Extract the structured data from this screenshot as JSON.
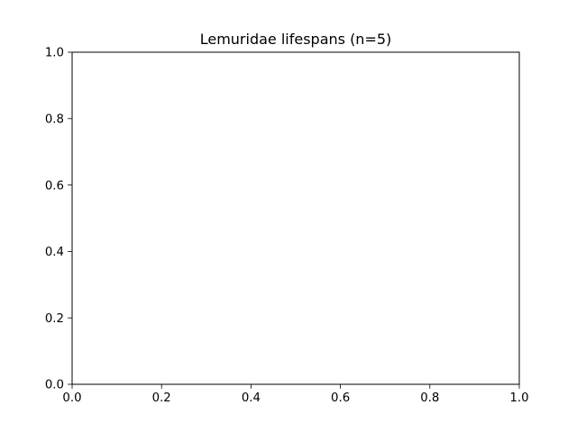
{
  "chart_data": {
    "type": "scatter",
    "title": "Lemuridae lifespans (n=5)",
    "xlabel": "",
    "ylabel": "",
    "xlim": [
      0.0,
      1.0
    ],
    "ylim": [
      0.0,
      1.0
    ],
    "x_ticks": [
      "0.0",
      "0.2",
      "0.4",
      "0.6",
      "0.8",
      "1.0"
    ],
    "y_ticks": [
      "0.0",
      "0.2",
      "0.4",
      "0.6",
      "0.8",
      "1.0"
    ],
    "grid": false,
    "legend": "none",
    "series": [],
    "colors": {
      "background": "#ffffff",
      "axes": "#000000",
      "text": "#000000"
    }
  }
}
